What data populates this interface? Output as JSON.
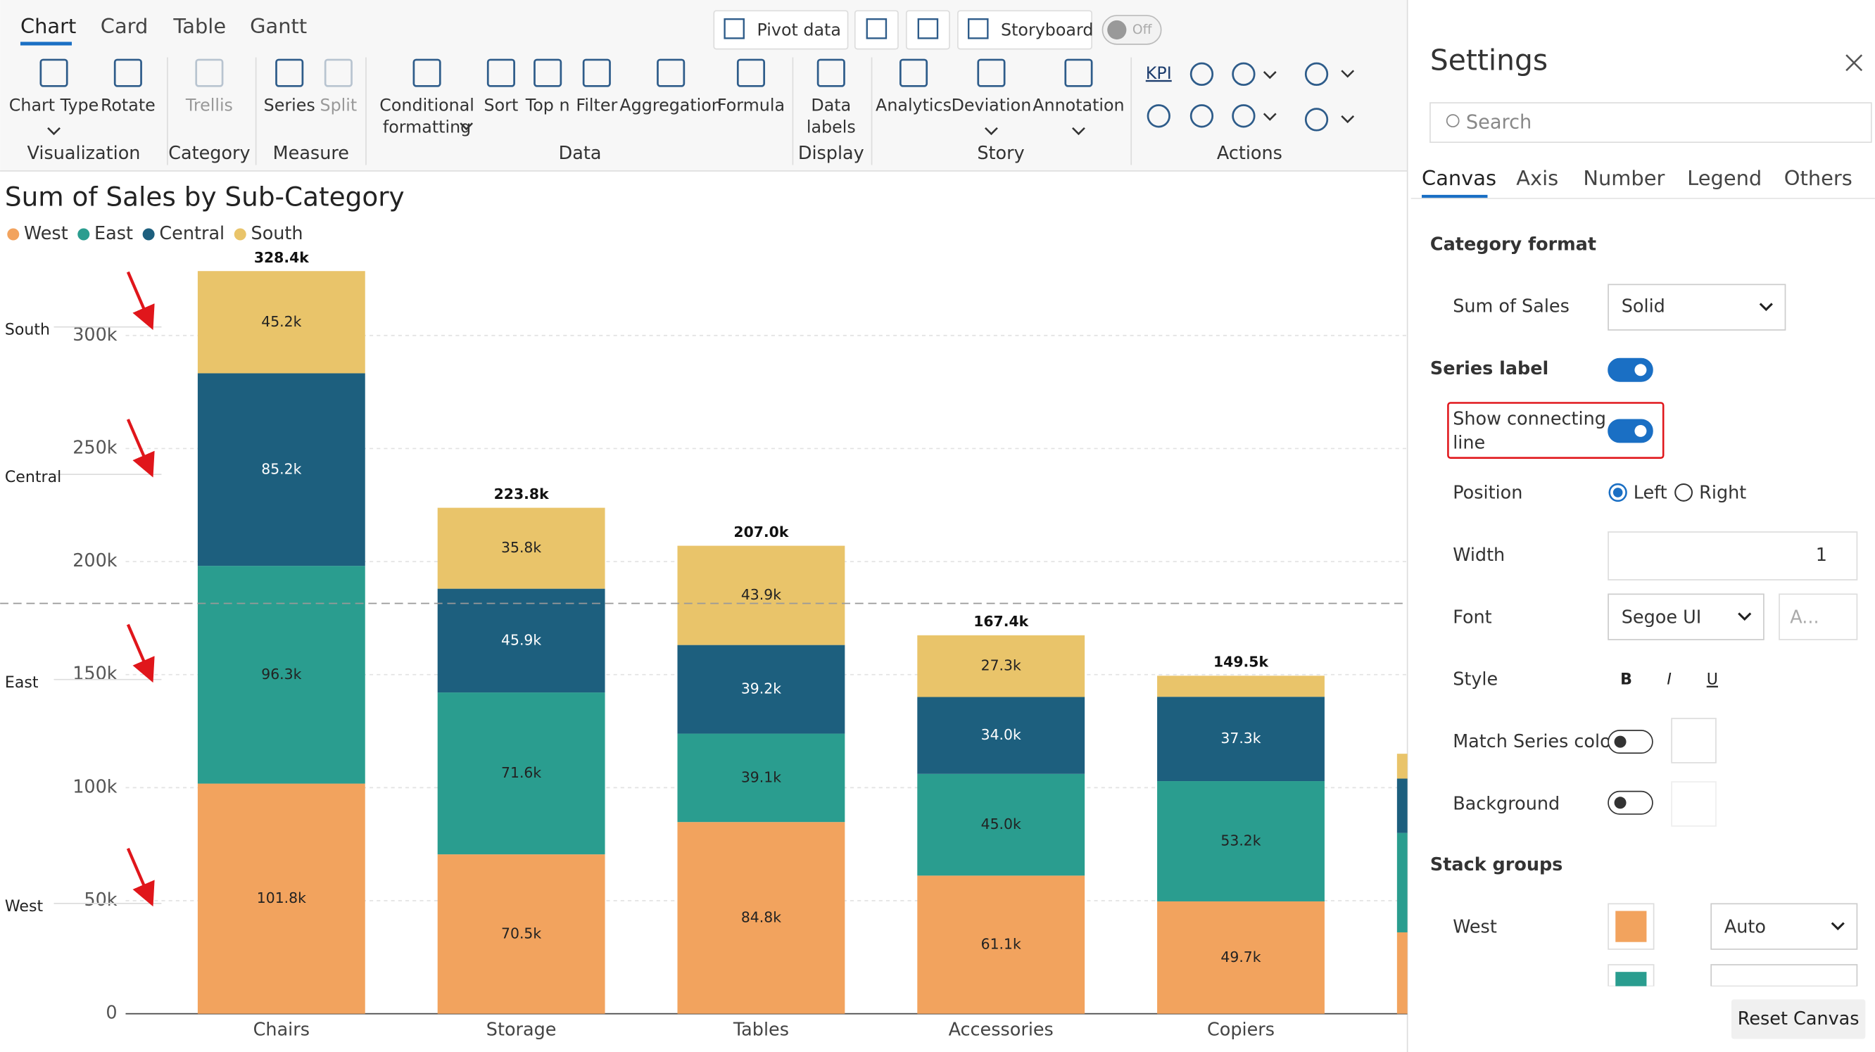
{
  "ui": {
    "view_tabs": [
      "Chart",
      "Card",
      "Table",
      "Gantt"
    ],
    "top_buttons": [
      "Pivot data",
      "Storyboard"
    ],
    "toggle": "Off",
    "ribbon_items": [
      [
        "Chart Type"
      ],
      [
        "Rotate"
      ],
      [
        "Trellis"
      ],
      [
        "Series"
      ],
      [
        "Split"
      ],
      [
        "Conditional",
        "formatting"
      ],
      [
        "Sort"
      ],
      [
        "Top n"
      ],
      [
        "Filter"
      ],
      [
        "Aggregation"
      ],
      [
        "Formula"
      ],
      [
        "Data",
        "labels"
      ],
      [
        "Analytics"
      ],
      [
        "Deviation"
      ],
      [
        "Annotation"
      ],
      [
        "KPI"
      ]
    ],
    "ribbon_groups": [
      "Visualization",
      "Category",
      "Measure",
      "Data",
      "Display",
      "Story",
      "Actions"
    ],
    "settings": {
      "title": "Settings",
      "search": "Search",
      "tabs": [
        "Canvas",
        "Axis",
        "Number",
        "Legend",
        "Others"
      ],
      "category_format": "Category format",
      "sum_of_sales": "Sum of Sales",
      "sum_of_sales_value": "Solid",
      "series_label": "Series label",
      "show_connecting_line": [
        "Show connecting",
        "line"
      ],
      "position": "Position",
      "position_options": [
        "Left",
        "Right"
      ],
      "width": "Width",
      "width_value": "1",
      "font": "Font",
      "font_value": "Segoe UI",
      "font_size": "A...",
      "style": "Style",
      "style_buttons": [
        "B",
        "I",
        "U"
      ],
      "match_series_color": "Match Series color",
      "background": "Background",
      "stack_groups": "Stack groups",
      "west": "West",
      "west_value": "Auto",
      "reset": "Reset Canvas"
    }
  },
  "chart_data": {
    "type": "stacked_bar",
    "title": "Sum of Sales by Sub-Category",
    "categories": [
      "Chairs",
      "Storage",
      "Tables",
      "Accessories",
      "Copiers",
      null
    ],
    "series": [
      {
        "name": "West",
        "color": "#f2a35e",
        "label_color": "#222222",
        "values": [
          101800,
          70500,
          84800,
          61100,
          49700,
          36000
        ],
        "value_labels": [
          "101.8k",
          "70.5k",
          "84.8k",
          "61.1k",
          "49.7k",
          null
        ]
      },
      {
        "name": "East",
        "color": "#2a9d8f",
        "label_color": "#222222",
        "values": [
          96300,
          71600,
          39100,
          45000,
          53200,
          44000
        ],
        "value_labels": [
          "96.3k",
          "71.6k",
          "39.1k",
          "45.0k",
          "53.2k",
          null
        ]
      },
      {
        "name": "Central",
        "color": "#1d5f7e",
        "label_color": "#ffffff",
        "values": [
          85200,
          45900,
          39200,
          34000,
          37300,
          24000
        ],
        "value_labels": [
          "85.2k",
          "45.9k",
          "39.2k",
          "34.0k",
          "37.3k",
          null
        ]
      },
      {
        "name": "South",
        "color": "#e9c46a",
        "label_color": "#222222",
        "values": [
          45200,
          35800,
          43900,
          27300,
          9300,
          11000
        ],
        "value_labels": [
          "45.2k",
          "35.8k",
          "43.9k",
          "27.3k",
          null,
          null
        ]
      }
    ],
    "totals": [
      328400,
      223800,
      207000,
      167400,
      149500,
      115000
    ],
    "total_labels": [
      "328.4k",
      "223.8k",
      "207.0k",
      "167.4k",
      "149.5k",
      null
    ],
    "reference_line": 181500,
    "ylim": [
      0,
      340000
    ],
    "yticks": [
      0,
      {
        "value": 50000,
        "label": "50k"
      },
      {
        "value": 100000,
        "label": "100k"
      },
      {
        "value": 150000,
        "label": "150k"
      },
      {
        "value": 200000,
        "label": "200k"
      },
      {
        "value": 250000,
        "label": "250k"
      },
      {
        "value": 300000,
        "label": "300k"
      }
    ],
    "grid": true,
    "legend": "top-left",
    "connecting_labels": "left"
  }
}
